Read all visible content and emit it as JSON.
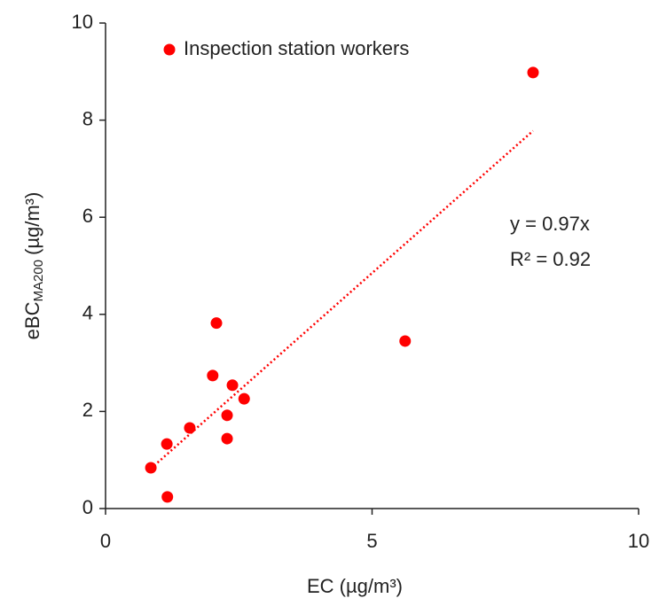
{
  "chart_data": {
    "type": "scatter",
    "xlabel": "EC (µg/m³)",
    "ylabel": {
      "text": "eBC",
      "subscript": "MA200",
      "unit": "(µg/m³)"
    },
    "series": [
      {
        "name": "Inspection station workers",
        "color": "#ff0000",
        "x": [
          0.85,
          1.16,
          1.15,
          1.58,
          2.01,
          2.08,
          2.28,
          2.28,
          2.38,
          2.6,
          5.62,
          8.02
        ],
        "values": [
          0.84,
          0.24,
          1.33,
          1.66,
          2.74,
          3.82,
          1.92,
          1.44,
          2.54,
          2.26,
          3.45,
          8.98
        ]
      }
    ],
    "trendline": {
      "slope": 0.97
    },
    "annotations": [
      "y = 0.97x",
      "R² = 0.92"
    ],
    "xlim": [
      0,
      10
    ],
    "xticks": [
      0,
      5,
      10
    ],
    "ylim": [
      0,
      10
    ],
    "yticks": [
      0,
      2,
      4,
      6,
      8,
      10
    ],
    "legend": "top-left"
  }
}
